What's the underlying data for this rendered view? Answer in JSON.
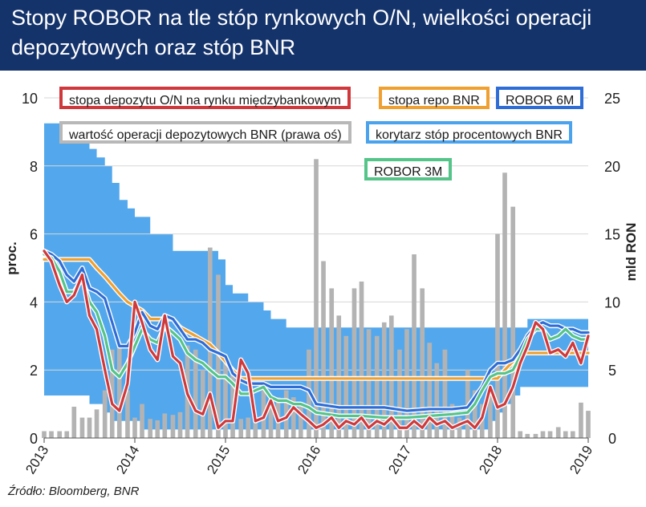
{
  "title": "Stopy ROBOR na tle stóp rynkowych O/N, wielkości operacji depozytowych oraz stóp BNR",
  "source": "Źródło: Bloomberg, BNR",
  "legend": {
    "red": "stopa depozytu O/N na rynku międzybankowym",
    "orange": "stopa repo BNR",
    "blue6": "ROBOR 6M",
    "grey": "wartość operacji depozytowych BNR (prawa oś)",
    "corridor": "korytarz stóp procentowych BNR",
    "green": "ROBOR 3M"
  },
  "colors": {
    "header_bg": "#15336b",
    "corridor": "#4aa3ec",
    "red": "#d0393b",
    "orange": "#f0a030",
    "blue6": "#2f6dd6",
    "green": "#55c489",
    "bars": "#b3b3b3"
  },
  "chart_data": {
    "type": "line",
    "xlabel": "",
    "ylabel": "proc.",
    "y2label": "mld RON",
    "x_ticks": [
      "2013",
      "2014",
      "2015",
      "2016",
      "2017",
      "2018",
      "2019"
    ],
    "ylim": [
      0,
      10
    ],
    "y_ticks": [
      "0",
      "2",
      "4",
      "6",
      "8",
      "10"
    ],
    "y2lim": [
      0,
      25
    ],
    "y2_ticks": [
      "0",
      "5",
      "10",
      "15",
      "20",
      "25"
    ],
    "corridor": {
      "name": "korytarz stóp procentowych BNR",
      "x": [
        2013.0,
        2013.33,
        2013.5,
        2013.58,
        2013.67,
        2013.75,
        2013.83,
        2013.92,
        2014.0,
        2014.08,
        2014.17,
        2014.25,
        2014.42,
        2014.5,
        2014.67,
        2014.83,
        2014.92,
        2015.0,
        2015.08,
        2015.17,
        2015.25,
        2015.33,
        2015.42,
        2015.5,
        2015.67,
        2015.83,
        2016.0,
        2016.5,
        2017.0,
        2017.5,
        2017.83,
        2017.92,
        2018.0,
        2018.08,
        2018.17,
        2018.25,
        2018.33,
        2018.5,
        2018.75,
        2019.0
      ],
      "upper": [
        9.25,
        9.0,
        8.5,
        8.25,
        8.0,
        7.5,
        7.0,
        6.75,
        6.5,
        6.5,
        6.0,
        6.0,
        5.5,
        5.5,
        5.5,
        5.5,
        5.25,
        4.5,
        4.25,
        4.25,
        4.0,
        4.0,
        3.75,
        3.5,
        3.25,
        3.25,
        3.25,
        3.25,
        3.25,
        3.25,
        3.25,
        3.25,
        3.25,
        3.25,
        3.25,
        3.25,
        3.5,
        3.5,
        3.5,
        3.5
      ],
      "lower": [
        1.25,
        1.25,
        1.0,
        1.0,
        0.75,
        0.5,
        0.5,
        0.5,
        0.5,
        0.25,
        0.25,
        0.25,
        0.25,
        0.25,
        0.25,
        0.25,
        0.25,
        0.25,
        0.25,
        0.25,
        0.25,
        0.25,
        0.25,
        0.25,
        0.25,
        0.25,
        0.25,
        0.25,
        0.25,
        0.25,
        0.25,
        0.5,
        0.75,
        1.0,
        1.25,
        1.5,
        1.5,
        1.5,
        1.5,
        1.5
      ]
    },
    "series": [
      {
        "name": "stopa repo BNR",
        "key": "orange",
        "x": [
          2013.0,
          2013.5,
          2013.58,
          2013.67,
          2013.75,
          2013.83,
          2013.92,
          2014.08,
          2014.17,
          2014.42,
          2014.5,
          2014.67,
          2014.83,
          2014.92,
          2015.0,
          2015.08,
          2015.17,
          2015.33,
          2016.0,
          2017.0,
          2017.9,
          2018.0,
          2018.08,
          2018.17,
          2018.25,
          2019.0
        ],
        "y": [
          5.25,
          5.25,
          5.0,
          4.75,
          4.5,
          4.25,
          4.0,
          3.75,
          3.5,
          3.5,
          3.25,
          3.0,
          2.75,
          2.5,
          2.25,
          2.0,
          1.75,
          1.75,
          1.75,
          1.75,
          1.75,
          1.75,
          2.0,
          2.25,
          2.5,
          2.5
        ]
      },
      {
        "name": "ROBOR 6M",
        "key": "blue6",
        "x": [
          2013.0,
          2013.08,
          2013.17,
          2013.25,
          2013.33,
          2013.42,
          2013.5,
          2013.58,
          2013.67,
          2013.75,
          2013.83,
          2013.92,
          2014.0,
          2014.08,
          2014.17,
          2014.25,
          2014.33,
          2014.42,
          2014.5,
          2014.58,
          2014.67,
          2014.75,
          2014.83,
          2014.92,
          2015.0,
          2015.08,
          2015.17,
          2015.25,
          2015.33,
          2015.42,
          2015.5,
          2015.58,
          2015.67,
          2015.75,
          2015.83,
          2015.92,
          2016.0,
          2016.25,
          2016.5,
          2016.75,
          2017.0,
          2017.25,
          2017.5,
          2017.67,
          2017.75,
          2017.83,
          2017.92,
          2018.0,
          2018.08,
          2018.17,
          2018.25,
          2018.33,
          2018.42,
          2018.5,
          2018.58,
          2018.67,
          2018.75,
          2018.83,
          2018.92,
          2019.0
        ],
        "y": [
          5.5,
          5.4,
          5.2,
          4.8,
          4.6,
          5.0,
          4.4,
          4.3,
          4.1,
          3.4,
          2.7,
          2.7,
          3.1,
          3.7,
          3.3,
          3.2,
          3.6,
          3.5,
          3.2,
          2.9,
          2.9,
          2.8,
          2.6,
          2.5,
          2.4,
          1.9,
          1.7,
          1.6,
          1.6,
          1.6,
          1.5,
          1.5,
          1.5,
          1.5,
          1.5,
          1.4,
          1.0,
          0.9,
          0.9,
          0.9,
          0.8,
          0.85,
          0.85,
          0.9,
          1.2,
          1.5,
          2.0,
          2.2,
          2.2,
          2.3,
          2.6,
          3.0,
          3.3,
          3.4,
          3.3,
          3.3,
          3.2,
          3.2,
          3.1,
          3.1
        ]
      },
      {
        "name": "ROBOR 3M",
        "key": "green",
        "x": [
          2013.0,
          2013.08,
          2013.17,
          2013.25,
          2013.33,
          2013.42,
          2013.5,
          2013.58,
          2013.67,
          2013.75,
          2013.83,
          2013.92,
          2014.0,
          2014.08,
          2014.17,
          2014.25,
          2014.33,
          2014.42,
          2014.5,
          2014.58,
          2014.67,
          2014.75,
          2014.83,
          2014.92,
          2015.0,
          2015.08,
          2015.17,
          2015.25,
          2015.33,
          2015.42,
          2015.5,
          2015.58,
          2015.67,
          2015.75,
          2015.83,
          2015.92,
          2016.0,
          2016.25,
          2016.5,
          2016.75,
          2017.0,
          2017.25,
          2017.5,
          2017.67,
          2017.75,
          2017.83,
          2017.92,
          2018.0,
          2018.08,
          2018.17,
          2018.25,
          2018.33,
          2018.42,
          2018.5,
          2018.58,
          2018.67,
          2018.75,
          2018.83,
          2018.92,
          2019.0
        ],
        "y": [
          5.4,
          5.3,
          4.9,
          4.3,
          4.3,
          4.7,
          4.0,
          3.7,
          3.0,
          2.0,
          1.8,
          2.2,
          2.7,
          3.2,
          2.9,
          2.8,
          3.3,
          3.1,
          2.9,
          2.5,
          2.3,
          2.2,
          2.0,
          1.8,
          1.8,
          1.6,
          1.3,
          1.3,
          1.4,
          1.5,
          1.2,
          1.1,
          1.1,
          1.0,
          1.0,
          0.9,
          0.75,
          0.65,
          0.65,
          0.6,
          0.6,
          0.65,
          0.7,
          0.75,
          1.0,
          1.4,
          1.8,
          1.9,
          1.9,
          2.0,
          2.4,
          2.9,
          3.2,
          3.2,
          2.9,
          3.0,
          3.2,
          3.0,
          2.9,
          2.9
        ]
      },
      {
        "name": "stopa depozytu O/N na rynku międzybankowym",
        "key": "red",
        "x": [
          2013.0,
          2013.08,
          2013.17,
          2013.25,
          2013.33,
          2013.42,
          2013.5,
          2013.58,
          2013.67,
          2013.75,
          2013.83,
          2013.92,
          2014.0,
          2014.08,
          2014.17,
          2014.25,
          2014.33,
          2014.42,
          2014.5,
          2014.58,
          2014.67,
          2014.75,
          2014.83,
          2014.92,
          2015.0,
          2015.08,
          2015.17,
          2015.25,
          2015.33,
          2015.42,
          2015.5,
          2015.58,
          2015.67,
          2015.75,
          2015.83,
          2015.92,
          2016.0,
          2016.08,
          2016.17,
          2016.25,
          2016.33,
          2016.42,
          2016.5,
          2016.58,
          2016.67,
          2016.75,
          2016.83,
          2016.92,
          2017.0,
          2017.08,
          2017.17,
          2017.25,
          2017.33,
          2017.42,
          2017.5,
          2017.58,
          2017.67,
          2017.75,
          2017.83,
          2017.92,
          2018.0,
          2018.08,
          2018.17,
          2018.25,
          2018.33,
          2018.42,
          2018.5,
          2018.58,
          2018.67,
          2018.75,
          2018.83,
          2018.92,
          2019.0
        ],
        "y": [
          5.5,
          5.2,
          4.5,
          4.0,
          4.2,
          4.8,
          3.6,
          3.2,
          2.0,
          1.0,
          0.8,
          1.6,
          4.0,
          3.4,
          2.6,
          2.3,
          3.6,
          2.4,
          2.2,
          1.3,
          0.8,
          0.7,
          1.3,
          0.3,
          0.5,
          0.5,
          2.3,
          1.9,
          0.5,
          0.6,
          1.1,
          0.5,
          0.6,
          0.9,
          0.7,
          0.5,
          0.3,
          0.4,
          0.6,
          0.3,
          0.5,
          0.4,
          0.6,
          0.3,
          0.5,
          0.4,
          0.6,
          0.3,
          0.3,
          0.5,
          0.3,
          0.6,
          0.4,
          0.5,
          0.3,
          0.4,
          0.5,
          0.3,
          0.6,
          1.5,
          0.9,
          1.0,
          1.5,
          2.2,
          2.7,
          3.4,
          3.2,
          2.5,
          2.6,
          2.4,
          2.8,
          2.2,
          3.0
        ]
      }
    ],
    "bars": {
      "name": "wartość operacji depozytowych BNR (prawa oś)",
      "axis": "right",
      "x": [
        2013.0,
        2013.08,
        2013.17,
        2013.25,
        2013.33,
        2013.42,
        2013.5,
        2013.58,
        2013.67,
        2013.75,
        2013.83,
        2013.92,
        2014.0,
        2014.08,
        2014.17,
        2014.25,
        2014.33,
        2014.42,
        2014.5,
        2014.58,
        2014.67,
        2014.75,
        2014.83,
        2014.92,
        2015.0,
        2015.08,
        2015.17,
        2015.25,
        2015.33,
        2015.42,
        2015.5,
        2015.58,
        2015.67,
        2015.75,
        2015.83,
        2015.92,
        2016.0,
        2016.08,
        2016.17,
        2016.25,
        2016.33,
        2016.42,
        2016.5,
        2016.58,
        2016.67,
        2016.75,
        2016.83,
        2016.92,
        2017.0,
        2017.08,
        2017.17,
        2017.25,
        2017.33,
        2017.42,
        2017.5,
        2017.58,
        2017.67,
        2017.75,
        2017.83,
        2017.92,
        2018.0,
        2018.08,
        2018.17,
        2018.25,
        2018.33,
        2018.42,
        2018.5,
        2018.58,
        2018.67,
        2018.75,
        2018.83,
        2018.92,
        2019.0
      ],
      "values": [
        0.5,
        0.5,
        0.5,
        0.5,
        2.3,
        1.5,
        1.5,
        2.1,
        3.5,
        6.5,
        7.0,
        3.5,
        1.5,
        2.5,
        1.4,
        1.3,
        1.8,
        1.7,
        1.9,
        6.8,
        6.5,
        5.0,
        14.0,
        12.0,
        5.5,
        5.0,
        1.4,
        1.5,
        1.5,
        3.5,
        3.0,
        3.0,
        3.5,
        3.0,
        2.5,
        6.5,
        20.5,
        13.0,
        11.0,
        9.0,
        7.5,
        11.0,
        11.5,
        8.0,
        7.5,
        8.5,
        9.0,
        6.5,
        8.0,
        13.5,
        11.0,
        7.0,
        5.5,
        6.5,
        2.5,
        1.5,
        5.0,
        3.5,
        2.5,
        3.5,
        15.0,
        19.5,
        17.0,
        0.5,
        0.3,
        0.3,
        0.5,
        0.5,
        0.8,
        0.5,
        0.5,
        2.6,
        2.0
      ]
    }
  }
}
